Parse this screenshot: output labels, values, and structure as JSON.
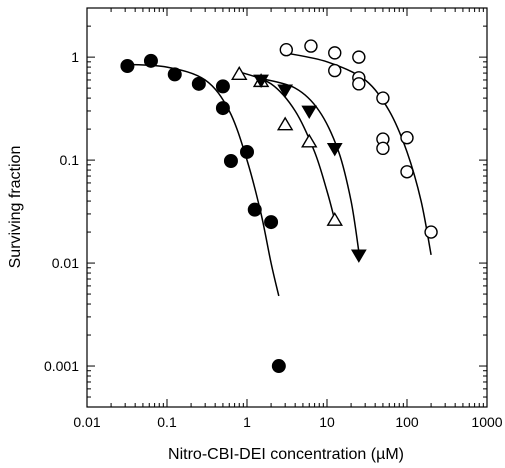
{
  "chart_data": {
    "type": "scatter",
    "title": "",
    "xlabel": "Nitro-CBI-DEI concentration (µM)",
    "ylabel": "Surviving fraction",
    "x_scale": "log",
    "y_scale": "log",
    "xlim": [
      0.01,
      1000
    ],
    "ylim": [
      0.0004,
      3
    ],
    "x_ticks": [
      0.01,
      0.1,
      1,
      10,
      100,
      1000
    ],
    "x_tick_labels": [
      "0.01",
      "0.1",
      "1",
      "10",
      "100",
      "1000"
    ],
    "y_ticks": [
      0.001,
      0.01,
      0.1,
      1
    ],
    "y_tick_labels": [
      "0.001",
      "0.01",
      "0.1",
      "1"
    ],
    "grid": false,
    "legend": "none",
    "series": [
      {
        "marker": "filled-circle",
        "points": [
          [
            0.032,
            0.82
          ],
          [
            0.063,
            0.92
          ],
          [
            0.125,
            0.68
          ],
          [
            0.25,
            0.55
          ],
          [
            0.5,
            0.52
          ],
          [
            0.5,
            0.32
          ],
          [
            0.63,
            0.098
          ],
          [
            1.0,
            0.12
          ],
          [
            1.25,
            0.033
          ],
          [
            2.0,
            0.025
          ],
          [
            2.5,
            0.001
          ]
        ],
        "fit": [
          [
            0.03,
            0.85
          ],
          [
            0.1,
            0.8
          ],
          [
            0.3,
            0.6
          ],
          [
            0.6,
            0.3
          ],
          [
            1.0,
            0.1
          ],
          [
            1.5,
            0.03
          ],
          [
            2.0,
            0.01
          ],
          [
            2.5,
            0.0048
          ]
        ]
      },
      {
        "marker": "open-triangle-up",
        "points": [
          [
            0.8,
            0.68
          ],
          [
            1.5,
            0.58
          ],
          [
            3.0,
            0.22
          ],
          [
            6.0,
            0.15
          ],
          [
            12.5,
            0.026
          ]
        ],
        "fit": [
          [
            0.8,
            0.72
          ],
          [
            2.0,
            0.55
          ],
          [
            4.0,
            0.3
          ],
          [
            7.0,
            0.12
          ],
          [
            10.0,
            0.05
          ],
          [
            12.5,
            0.026
          ]
        ]
      },
      {
        "marker": "filled-triangle-down",
        "points": [
          [
            1.5,
            0.6
          ],
          [
            3.0,
            0.48
          ],
          [
            6.0,
            0.3
          ],
          [
            12.5,
            0.13
          ],
          [
            25,
            0.012
          ]
        ],
        "fit": [
          [
            1.5,
            0.62
          ],
          [
            4.0,
            0.5
          ],
          [
            8.0,
            0.3
          ],
          [
            14.0,
            0.12
          ],
          [
            20.0,
            0.04
          ],
          [
            25.0,
            0.013
          ]
        ]
      },
      {
        "marker": "open-circle",
        "points": [
          [
            3.1,
            1.18
          ],
          [
            6.3,
            1.28
          ],
          [
            12.5,
            1.1
          ],
          [
            12.5,
            0.74
          ],
          [
            25,
            1.0
          ],
          [
            25,
            0.63
          ],
          [
            25,
            0.55
          ],
          [
            50,
            0.4
          ],
          [
            50,
            0.16
          ],
          [
            50,
            0.13
          ],
          [
            100,
            0.165
          ],
          [
            100,
            0.077
          ],
          [
            200,
            0.02
          ]
        ],
        "fit": [
          [
            3.0,
            1.1
          ],
          [
            10.0,
            0.9
          ],
          [
            30.0,
            0.6
          ],
          [
            60.0,
            0.3
          ],
          [
            100.0,
            0.12
          ],
          [
            150.0,
            0.04
          ],
          [
            200.0,
            0.012
          ]
        ]
      }
    ]
  }
}
